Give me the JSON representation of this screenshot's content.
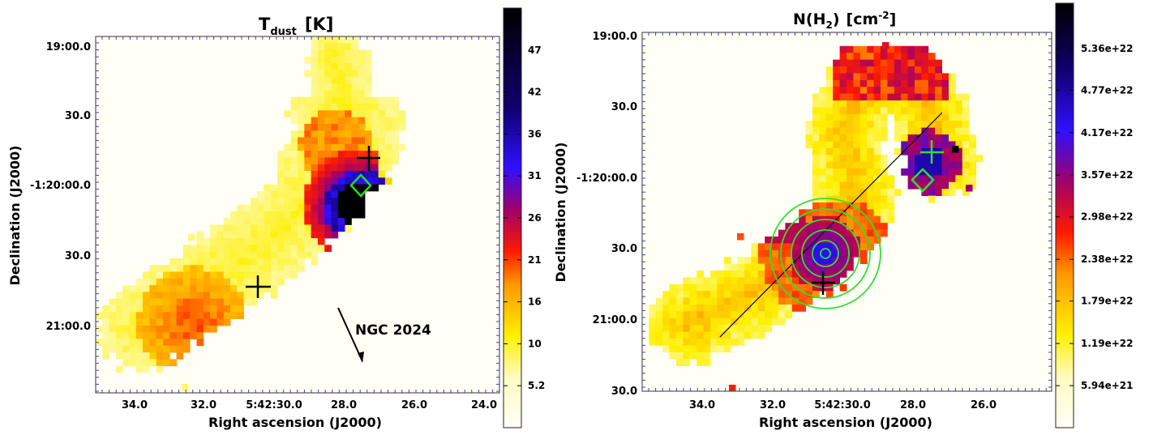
{
  "chart_data": [
    {
      "type": "heatmap",
      "title": "T",
      "title_sub": "dust",
      "title_unit": "[K]",
      "xlabel": "Right ascension (J2000)",
      "ylabel": "Declination (J2000)",
      "xticks": [
        "34.0",
        "32.0",
        "5:42:30.0",
        "28.0",
        "26.0",
        "24.0"
      ],
      "yticks": [
        "19:00.0",
        "30.0",
        "-1:20:00.0",
        "30.0",
        "21:00.0"
      ],
      "colorbar": {
        "min": 0,
        "max": 52,
        "ticks": [
          "5.2",
          "10",
          "16",
          "21",
          "26",
          "31",
          "36",
          "42",
          "47"
        ],
        "tick_values": [
          5.2,
          10.4,
          15.6,
          20.8,
          26.0,
          31.2,
          36.4,
          41.6,
          46.8
        ]
      },
      "annotation": "NGC 2024",
      "features": [
        "black plus at south-west peak",
        "black plus at north-east peak",
        "green diamond near hottest region"
      ]
    },
    {
      "type": "heatmap",
      "title": "N(H",
      "title_sub": "2",
      "title_close": ")",
      "title_unit": "[cm",
      "title_exp": "-2",
      "title_unit_close": "]",
      "xlabel": "Right ascension (J2000)",
      "ylabel": "Declination (J2000)",
      "xticks": [
        "34.0",
        "32.0",
        "5:42:30.0",
        "28.0",
        "26.0"
      ],
      "yticks": [
        "19:00.0",
        "30.0",
        "-1:20:00.0",
        "30.0",
        "21:00.0",
        "30.0"
      ],
      "colorbar": {
        "min": 0,
        "max": 6e+22,
        "ticks": [
          "5.94e+21",
          "1.19e+22",
          "1.79e+22",
          "2.38e+22",
          "2.98e+22",
          "3.57e+22",
          "4.17e+22",
          "4.77e+22",
          "5.36e+22"
        ],
        "tick_values": [
          5.94e+21,
          1.19e+22,
          1.79e+22,
          2.38e+22,
          2.98e+22,
          3.57e+22,
          4.17e+22,
          4.77e+22,
          5.36e+22
        ]
      },
      "features": [
        "concentric green circles around south-west column density peak",
        "green plus and green diamond at north-east peak",
        "black line along filament",
        "black plus at south-west"
      ]
    }
  ]
}
